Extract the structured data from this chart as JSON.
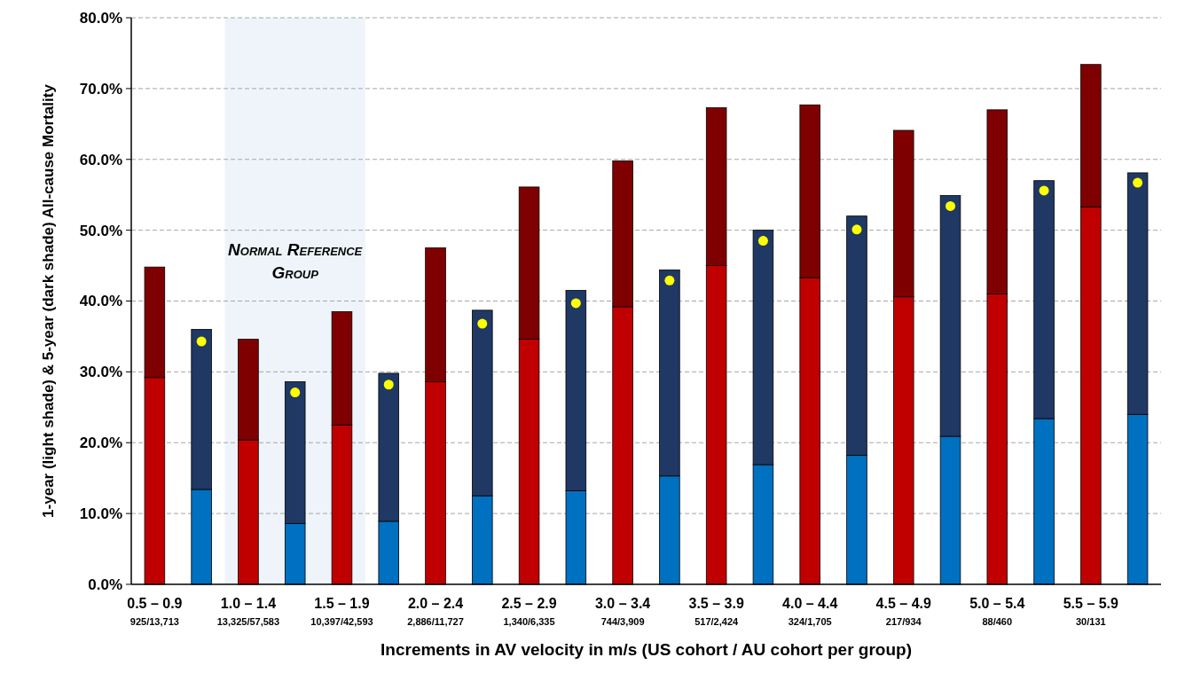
{
  "chart_data": {
    "type": "bar",
    "stacked": true,
    "xlabel": "Increments in AV velocity in m/s (US cohort / AU cohort per group)",
    "ylabel": "1-year (light shade) & 5-year (dark shade) All-cause Mortality",
    "categories": [
      "0.5 – 0.9",
      null,
      "1.0 – 1.4",
      null,
      "1.5 – 1.9",
      null,
      "2.0 – 2.4",
      null,
      "2.5 – 2.9",
      null,
      "3.0 – 3.4",
      null,
      "3.5 – 3.9",
      null,
      "4.0 – 4.4",
      null,
      "4.5 – 4.9",
      null,
      "5.0 – 5.4",
      null,
      "5.5 – 5.9",
      null
    ],
    "annotations": [
      "925/13,713",
      "13,325/57,583",
      "10,397/42,593",
      "2,886/11,727",
      "1,340/6,335",
      "744/3,909",
      "517/2,424",
      "324/1,705",
      "217/934",
      "88/460",
      "30/131"
    ],
    "series": [
      {
        "color": "#c00000",
        "values": [
          29.2,
          null,
          20.4,
          null,
          22.5,
          null,
          28.6,
          null,
          34.6,
          null,
          39.2,
          null,
          45.0,
          null,
          43.3,
          null,
          40.6,
          null,
          41.0,
          null,
          53.3,
          null
        ]
      },
      {
        "color": "#7f0000",
        "values": [
          15.6,
          null,
          14.2,
          null,
          16.0,
          null,
          18.9,
          null,
          21.5,
          null,
          20.6,
          null,
          22.3,
          null,
          24.4,
          null,
          23.5,
          null,
          26.0,
          null,
          20.1,
          null
        ]
      },
      {
        "color": "#0070c0",
        "values": [
          null,
          13.4,
          null,
          8.6,
          null,
          8.9,
          null,
          12.5,
          null,
          13.2,
          null,
          15.3,
          null,
          16.9,
          null,
          18.2,
          null,
          20.9,
          null,
          23.4,
          null,
          24.0
        ]
      },
      {
        "color": "#1f3864",
        "values": [
          null,
          22.6,
          null,
          20.0,
          null,
          20.9,
          null,
          26.2,
          null,
          28.3,
          null,
          29.1,
          null,
          33.1,
          null,
          33.8,
          null,
          34.0,
          null,
          33.6,
          null,
          34.1
        ]
      },
      {
        "type": "scatter",
        "color": "#ffff00",
        "values": [
          null,
          34.3,
          null,
          27.1,
          null,
          28.2,
          null,
          36.8,
          null,
          39.7,
          null,
          42.9,
          null,
          48.5,
          null,
          50.1,
          null,
          53.4,
          null,
          55.6,
          null,
          56.7
        ]
      }
    ],
    "marker": "circle",
    "ylim": [
      0,
      80
    ],
    "yticks": [
      {
        "value": 0,
        "label": "0.0%"
      },
      {
        "value": 10,
        "label": "10.0%"
      },
      {
        "value": 20,
        "label": "20.0%"
      },
      {
        "value": 30,
        "label": "30.0%"
      },
      {
        "value": 40,
        "label": "40.0%"
      },
      {
        "value": 50,
        "label": "50.0%"
      },
      {
        "value": 60,
        "label": "60.0%"
      },
      {
        "value": 70,
        "label": "70.0%"
      },
      {
        "value": 80,
        "label": "80.0%"
      }
    ],
    "grid": "y",
    "bands": [
      {
        "axis": "x",
        "from": "1.0 – 1.4",
        "to": "1.5 – 1.9",
        "label": "Normal Reference Group",
        "color": "#eef4fa"
      }
    ]
  }
}
